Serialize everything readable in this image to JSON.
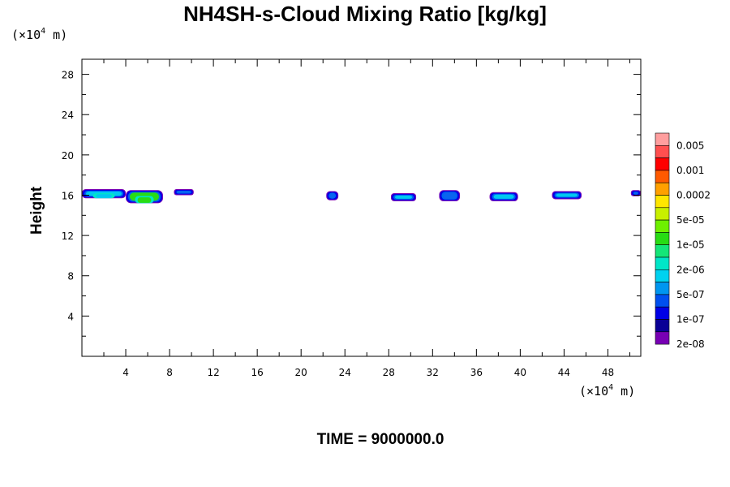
{
  "chart_data": {
    "type": "heatmap",
    "title": "NH4SH-s-Cloud Mixing Ratio [kg/kg]",
    "ylabel": "Height",
    "xlabel": "",
    "y_unit_label": "(×10",
    "y_unit_exp": "4",
    "y_unit_tail": " m)",
    "x_unit_label": "(×10",
    "x_unit_exp": "4",
    "x_unit_tail": " m)",
    "footer": "TIME = 9000000.0",
    "xlim": [
      0,
      51
    ],
    "ylim": [
      0,
      29.5
    ],
    "x_ticks": [
      4,
      8,
      12,
      16,
      20,
      24,
      28,
      32,
      36,
      40,
      44,
      48
    ],
    "y_ticks": [
      4,
      8,
      12,
      16,
      20,
      24,
      28
    ],
    "colorbar": {
      "colors": [
        "#ff9e9e",
        "#ff4f4f",
        "#ff0000",
        "#ff5a00",
        "#ffa000",
        "#ffe600",
        "#c8f000",
        "#6ef000",
        "#28dc14",
        "#14e678",
        "#00e6c8",
        "#00d2f0",
        "#0096f0",
        "#0050f0",
        "#0000e6",
        "#0a0096",
        "#7800b4"
      ],
      "labels": [
        "0.005",
        "0.001",
        "0.0002",
        "5e-05",
        "1e-05",
        "2e-06",
        "5e-07",
        "1e-07",
        "2e-08"
      ]
    },
    "clouds": [
      {
        "x0": 0,
        "x1": 4,
        "y0": 15.7,
        "y1": 16.6,
        "peak": "cyan",
        "core": true
      },
      {
        "x0": 4,
        "x1": 7.4,
        "y0": 15.2,
        "y1": 16.5,
        "peak": "green",
        "core": true
      },
      {
        "x0": 8.4,
        "x1": 10.2,
        "y0": 16.0,
        "y1": 16.6,
        "peak": "blue",
        "core": false
      },
      {
        "x0": 22.3,
        "x1": 23.4,
        "y0": 15.5,
        "y1": 16.4,
        "peak": "blue",
        "core": false
      },
      {
        "x0": 28.2,
        "x1": 30.5,
        "y0": 15.4,
        "y1": 16.2,
        "peak": "cyan",
        "core": false
      },
      {
        "x0": 32.6,
        "x1": 34.5,
        "y0": 15.4,
        "y1": 16.5,
        "peak": "blue",
        "core": false
      },
      {
        "x0": 37.2,
        "x1": 39.8,
        "y0": 15.4,
        "y1": 16.3,
        "peak": "cyan",
        "core": false
      },
      {
        "x0": 42.9,
        "x1": 45.6,
        "y0": 15.6,
        "y1": 16.4,
        "peak": "cyan",
        "core": false
      },
      {
        "x0": 50.1,
        "x1": 51.0,
        "y0": 15.9,
        "y1": 16.5,
        "peak": "blue",
        "core": false
      }
    ]
  }
}
